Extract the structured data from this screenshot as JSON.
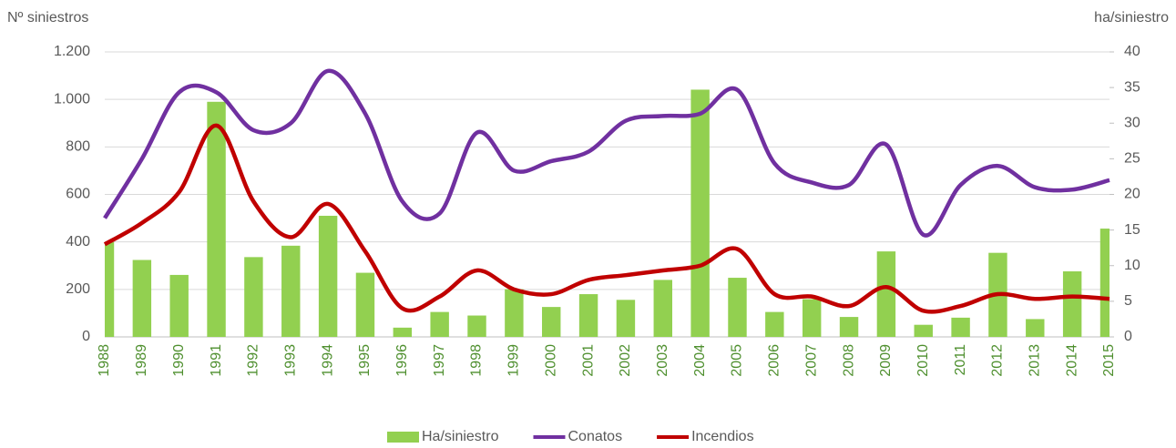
{
  "chart_data": {
    "type": "combo",
    "y_label": "Nº siniestros",
    "y2_label": "ha/siniestro",
    "categories": [
      "1988",
      "1989",
      "1990",
      "1991",
      "1992",
      "1993",
      "1994",
      "1995",
      "1996",
      "1997",
      "1998",
      "1999",
      "2000",
      "2001",
      "2002",
      "2003",
      "2004",
      "2005",
      "2006",
      "2007",
      "2008",
      "2009",
      "2010",
      "2011",
      "2012",
      "2013",
      "2014",
      "2015"
    ],
    "series": [
      {
        "name": "Ha/siniestro",
        "type": "bar",
        "axis": "y2",
        "color": "#92d050",
        "values": [
          13.3,
          10.8,
          8.7,
          33,
          11.2,
          12.8,
          17,
          9,
          1.3,
          3.5,
          3,
          6.7,
          4.2,
          6,
          5.2,
          8,
          34.7,
          8.3,
          3.5,
          5.3,
          2.8,
          12,
          1.7,
          2.7,
          11.8,
          2.5,
          9.2,
          15.2
        ]
      },
      {
        "name": "Conatos",
        "type": "line",
        "color": "#7030a0",
        "values": [
          500,
          750,
          1030,
          1030,
          870,
          900,
          1120,
          940,
          570,
          520,
          860,
          700,
          740,
          780,
          910,
          930,
          940,
          1040,
          730,
          650,
          640,
          810,
          430,
          640,
          720,
          630,
          620,
          660
        ]
      },
      {
        "name": "Incendios",
        "type": "line",
        "color": "#c00000",
        "values": [
          390,
          480,
          610,
          890,
          570,
          420,
          560,
          360,
          120,
          170,
          280,
          200,
          180,
          240,
          260,
          280,
          300,
          370,
          180,
          170,
          130,
          210,
          110,
          130,
          180,
          160,
          170,
          160
        ]
      }
    ],
    "ylim": [
      0,
      1200
    ],
    "yticks": [
      0,
      200,
      400,
      600,
      800,
      {
        "value": 1000,
        "label": "1.000"
      },
      {
        "value": 1200,
        "label": "1.200"
      }
    ],
    "y2lim": [
      0,
      40
    ],
    "y2ticks": [
      0,
      5,
      10,
      15,
      20,
      25,
      30,
      35,
      40
    ],
    "grid": true,
    "legend": "bottom"
  }
}
